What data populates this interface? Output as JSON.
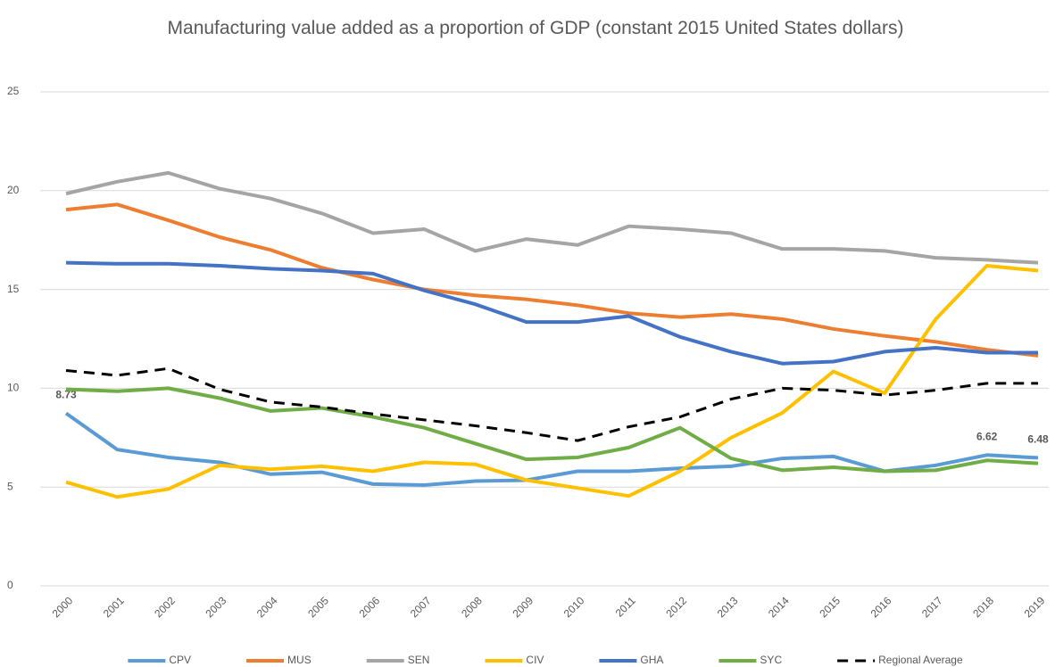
{
  "chart_data": {
    "type": "line",
    "title": "Manufacturing value added as a proportion of GDP (constant 2015 United States dollars)",
    "categories": [
      "2000",
      "2001",
      "2002",
      "2003",
      "2004",
      "2005",
      "2006",
      "2007",
      "2008",
      "2009",
      "2010",
      "2011",
      "2012",
      "2013",
      "2014",
      "2015",
      "2016",
      "2017",
      "2018",
      "2019"
    ],
    "series": [
      {
        "name": "CPV",
        "color": "#5b9bd5",
        "values": [
          8.73,
          6.9,
          6.5,
          6.25,
          5.65,
          5.75,
          5.15,
          5.1,
          5.3,
          5.35,
          5.8,
          5.8,
          5.95,
          6.05,
          6.45,
          6.55,
          5.8,
          6.1,
          6.62,
          6.48
        ],
        "value_labels": [
          "8.73",
          null,
          null,
          null,
          null,
          null,
          null,
          null,
          null,
          null,
          null,
          null,
          null,
          null,
          null,
          null,
          null,
          null,
          "6.62",
          "6.48"
        ]
      },
      {
        "name": "MUS",
        "color": "#ed7d31",
        "values": [
          19.04,
          19.3,
          18.5,
          17.65,
          17.0,
          16.1,
          15.5,
          15.0,
          14.7,
          14.5,
          14.2,
          13.8,
          13.6,
          13.75,
          13.5,
          13.0,
          12.65,
          12.35,
          11.95,
          11.65
        ]
      },
      {
        "name": "SEN",
        "color": "#a5a5a5",
        "values": [
          19.85,
          20.45,
          20.9,
          20.1,
          19.6,
          18.85,
          17.85,
          18.05,
          16.95,
          17.55,
          17.25,
          18.2,
          18.05,
          17.85,
          17.05,
          17.05,
          16.95,
          16.6,
          16.5,
          16.35
        ]
      },
      {
        "name": "CIV",
        "color": "#ffc000",
        "values": [
          5.25,
          4.5,
          4.9,
          6.1,
          5.9,
          6.05,
          5.8,
          6.25,
          6.15,
          5.35,
          4.95,
          4.55,
          5.8,
          7.5,
          8.75,
          10.85,
          9.75,
          13.5,
          16.2,
          15.95
        ]
      },
      {
        "name": "GHA",
        "color": "#4472c4",
        "values": [
          16.35,
          16.3,
          16.3,
          16.2,
          16.05,
          15.95,
          15.8,
          14.95,
          14.25,
          13.35,
          13.35,
          13.65,
          12.6,
          11.85,
          11.25,
          11.35,
          11.85,
          12.05,
          11.8,
          11.8
        ]
      },
      {
        "name": "SYC",
        "color": "#70ad47",
        "values": [
          9.95,
          9.85,
          10.0,
          9.5,
          8.85,
          9.0,
          8.55,
          8.0,
          7.2,
          6.4,
          6.5,
          7.0,
          8.0,
          6.45,
          5.85,
          6.0,
          5.8,
          5.85,
          6.35,
          6.2
        ]
      },
      {
        "name": "Regional Average",
        "color": "#000000",
        "style": "dashed",
        "values": [
          10.9,
          10.65,
          11.0,
          9.95,
          9.3,
          9.05,
          8.7,
          8.4,
          8.1,
          7.75,
          7.35,
          8.05,
          8.55,
          9.45,
          10.0,
          9.9,
          9.65,
          9.9,
          10.25,
          10.25
        ]
      }
    ],
    "ylim": [
      0,
      25
    ],
    "yticks": [
      0,
      5,
      10,
      15,
      20,
      25
    ],
    "grid": true,
    "legend": "bottom"
  }
}
